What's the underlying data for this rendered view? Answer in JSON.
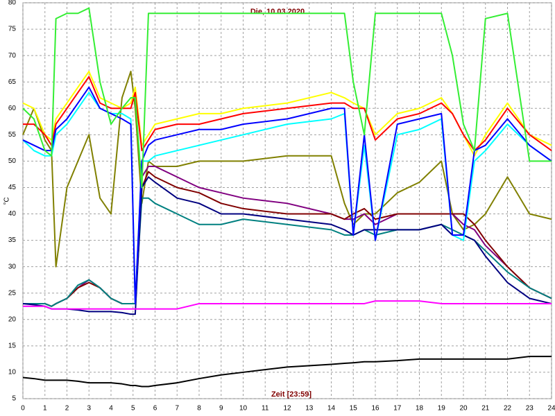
{
  "chart_data": {
    "type": "line",
    "title": "Die, 10.03.2020",
    "xlabel": "Zeit [23:59]",
    "ylabel": "°C",
    "x": [
      0,
      0.5,
      1,
      1.3,
      1.5,
      2,
      2.5,
      3,
      3.5,
      4,
      4.5,
      4.9,
      5.1,
      5.4,
      5.7,
      6,
      7,
      8,
      9,
      10,
      12,
      14,
      14.6,
      15,
      15.5,
      16,
      17,
      18,
      19,
      19.5,
      20,
      20.5,
      21,
      22,
      23,
      24
    ],
    "xlim": [
      0,
      24
    ],
    "xticks": [
      0,
      1,
      2,
      3,
      4,
      5,
      6,
      7,
      8,
      9,
      10,
      11,
      12,
      13,
      14,
      15,
      16,
      17,
      18,
      19,
      20,
      21,
      22,
      23,
      24
    ],
    "ylim": [
      5,
      80
    ],
    "yticks": [
      5,
      10,
      15,
      20,
      25,
      30,
      35,
      40,
      45,
      50,
      55,
      60,
      65,
      70,
      75,
      80
    ],
    "grid": true,
    "series": [
      {
        "color": "#808000",
        "values": [
          55,
          60,
          54,
          52,
          30,
          45,
          50,
          55,
          43,
          40,
          62,
          67,
          60,
          42,
          50,
          49,
          49,
          50,
          50,
          50,
          51,
          51,
          42,
          38,
          40,
          40,
          44,
          46,
          50,
          40,
          37,
          38,
          40,
          47,
          40,
          39
        ]
      },
      {
        "color": "#800080",
        "values": [
          23,
          23,
          23,
          22.5,
          23,
          24,
          26,
          27.5,
          26,
          24,
          23,
          23,
          23,
          47,
          49,
          49,
          47,
          45,
          44,
          43,
          42,
          40,
          39,
          39,
          40,
          38,
          40,
          40,
          40,
          40,
          38,
          37,
          34,
          30,
          26,
          24
        ]
      },
      {
        "color": "#800000",
        "values": [
          23,
          23,
          23,
          22.5,
          23,
          24,
          26,
          27,
          26,
          24,
          23,
          23,
          23,
          45,
          48,
          47,
          45,
          44,
          42,
          41,
          40,
          40,
          39,
          40,
          41,
          39,
          40,
          40,
          40,
          40,
          40,
          38,
          35,
          30,
          26,
          24
        ]
      },
      {
        "color": "#008080",
        "values": [
          23,
          23,
          23,
          22.5,
          23,
          24,
          26.5,
          27.5,
          26,
          24,
          23,
          23,
          23,
          43,
          43,
          42,
          40,
          38,
          38,
          39,
          38,
          37,
          36,
          36,
          37,
          36,
          37,
          37,
          38,
          37,
          36,
          35,
          33,
          29,
          26,
          24
        ]
      },
      {
        "color": "#000080",
        "values": [
          23,
          22.8,
          22.5,
          22,
          22,
          22,
          21.8,
          21.5,
          21.5,
          21.5,
          21.3,
          21,
          21,
          45,
          47,
          46,
          43,
          42,
          40,
          40,
          39,
          38,
          37,
          36,
          37,
          37,
          37,
          37,
          38,
          36,
          36,
          35,
          32,
          27,
          24,
          23
        ]
      },
      {
        "color": "#ff00ff",
        "values": [
          22.5,
          22.5,
          22.5,
          22,
          22,
          22,
          22,
          22,
          22,
          22,
          22,
          22,
          22,
          22,
          22,
          22,
          22,
          23,
          23,
          23,
          23,
          23,
          23,
          23,
          23,
          23.5,
          23.5,
          23.5,
          23,
          23,
          23,
          23,
          23,
          23,
          23,
          23
        ]
      },
      {
        "color": "#000000",
        "values": [
          9,
          8.8,
          8.5,
          8.5,
          8.5,
          8.5,
          8.3,
          8,
          8,
          8,
          7.8,
          7.5,
          7.5,
          7.3,
          7.3,
          7.5,
          8,
          8.8,
          9.5,
          10,
          11,
          11.5,
          11.7,
          11.8,
          12,
          12,
          12.2,
          12.5,
          12.5,
          12.5,
          12.5,
          12.5,
          12.5,
          12.5,
          13,
          13
        ]
      },
      {
        "color": "#00ffff",
        "values": [
          54,
          52,
          51,
          51,
          55,
          57,
          60,
          63,
          60,
          59,
          59,
          58,
          23,
          50,
          50,
          51,
          52,
          53,
          54,
          55,
          57,
          58,
          59,
          36,
          53,
          35,
          55,
          56,
          58,
          36,
          35,
          50,
          52,
          57,
          53,
          50
        ]
      },
      {
        "color": "#ffff00",
        "values": [
          61,
          60,
          55,
          54,
          58,
          61,
          64,
          67,
          62,
          61,
          60,
          61,
          64,
          53,
          55,
          57,
          58,
          59,
          59,
          60,
          61,
          63,
          62,
          61,
          60,
          55,
          59,
          60,
          62,
          59,
          55,
          51,
          55,
          61,
          55,
          53
        ]
      },
      {
        "color": "#ff0000",
        "values": [
          57,
          57,
          55,
          53,
          57,
          60,
          63,
          66,
          61,
          60,
          60,
          60,
          63,
          52,
          54,
          56,
          57,
          57,
          58,
          59,
          60,
          61,
          61,
          60,
          60,
          54,
          58,
          59,
          61,
          59,
          55,
          52,
          54,
          60,
          55,
          52
        ]
      },
      {
        "color": "#0000ff",
        "values": [
          54,
          53,
          52,
          52,
          56,
          58,
          61,
          64,
          60,
          59,
          58,
          57,
          23,
          50,
          53,
          54,
          55,
          56,
          56,
          57,
          58,
          60,
          60,
          36,
          55,
          35,
          57,
          58,
          59,
          36,
          36,
          52,
          53,
          58,
          53,
          50
        ]
      },
      {
        "color": "#33ee33",
        "values": [
          60,
          58,
          52,
          51,
          77,
          78,
          78,
          79,
          65,
          57,
          60,
          62,
          62,
          45,
          78,
          78,
          78,
          78,
          78,
          78,
          78,
          78,
          78,
          65,
          55,
          78,
          78,
          78,
          78,
          70,
          57,
          52,
          77,
          78,
          50,
          50
        ]
      }
    ]
  }
}
